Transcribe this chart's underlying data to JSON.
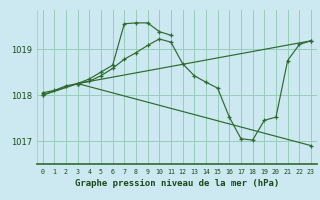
{
  "title": "Graphe pression niveau de la mer (hPa)",
  "bg_color": "#cce8f0",
  "grid_color": "#99ccbb",
  "line_color": "#2d6a2d",
  "ylabel_ticks": [
    1017,
    1018,
    1019
  ],
  "xlim": [
    -0.5,
    23.5
  ],
  "ylim": [
    1016.5,
    1019.85
  ],
  "series": [
    {
      "x": [
        0,
        1,
        2,
        3,
        4,
        5,
        6,
        7,
        8,
        9,
        10,
        11
      ],
      "y": [
        1018.05,
        1018.1,
        1018.2,
        1018.25,
        1018.35,
        1018.5,
        1018.65,
        1019.55,
        1019.57,
        1019.57,
        1019.38,
        1019.3
      ]
    },
    {
      "x": [
        3,
        4,
        5,
        6,
        7,
        8,
        9,
        10,
        11,
        12,
        13,
        14,
        15,
        16,
        17,
        18,
        19,
        20,
        21,
        22,
        23
      ],
      "y": [
        1018.25,
        1018.3,
        1018.42,
        1018.58,
        1018.78,
        1018.92,
        1019.08,
        1019.22,
        1019.15,
        1018.68,
        1018.42,
        1018.28,
        1018.15,
        1017.52,
        1017.05,
        1017.02,
        1017.45,
        1017.52,
        1018.75,
        1019.1,
        1019.18
      ]
    },
    {
      "x": [
        0,
        3,
        23
      ],
      "y": [
        1018.0,
        1018.25,
        1019.18
      ]
    },
    {
      "x": [
        0,
        3,
        23
      ],
      "y": [
        1018.0,
        1018.25,
        1016.9
      ]
    }
  ]
}
